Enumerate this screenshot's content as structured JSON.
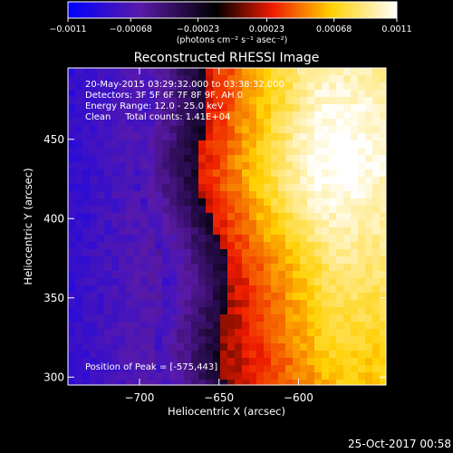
{
  "colorbar": {
    "ticks": [
      {
        "value": -0.0011,
        "label": "−0.0011"
      },
      {
        "value": -0.00068,
        "label": "−0.00068"
      },
      {
        "value": -0.00023,
        "label": "−0.00023"
      },
      {
        "value": 0.00023,
        "label": "0.00023"
      },
      {
        "value": 0.00068,
        "label": "0.00068"
      },
      {
        "value": 0.0011,
        "label": "0.0011"
      }
    ],
    "range": [
      -0.0011,
      0.0011
    ],
    "unit_label": "(photons cm⁻² s⁻¹ asec⁻²)"
  },
  "chart_data": {
    "type": "heatmap",
    "title": "Reconstructed RHESSI Image",
    "xlabel": "Heliocentric X (arcsec)",
    "ylabel": "Heliocentric Y (arcsec)",
    "xlim": [
      -745,
      -545
    ],
    "ylim": [
      295,
      495
    ],
    "x_ticks": [
      {
        "value": -700,
        "label": "−700"
      },
      {
        "value": -650,
        "label": "−650"
      },
      {
        "value": -600,
        "label": "−600"
      }
    ],
    "y_ticks": [
      {
        "value": 300,
        "label": "300"
      },
      {
        "value": 350,
        "label": "350"
      },
      {
        "value": 400,
        "label": "400"
      },
      {
        "value": 450,
        "label": "450"
      }
    ],
    "colormap": [
      "#0000ff",
      "#5a1aa8",
      "#000000",
      "#ee1a00",
      "#ffd000",
      "#ffffff"
    ],
    "value_range": [
      -0.0011,
      0.0011
    ],
    "peak_position": [
      -575,
      443
    ],
    "annotations": [
      "20-May-2015 03:29:32.000 to 03:38:32.000",
      "Detectors: 3F 5F 6F 7F 8F 9F, AH 0",
      "Energy Range: 12.0 - 25.0 keV",
      "Clean     Total counts: 1.41E+04"
    ],
    "peak_label": "Position of Peak = [-575,443]"
  },
  "footer": {
    "timestamp": "25-Oct-2017 00:58"
  }
}
